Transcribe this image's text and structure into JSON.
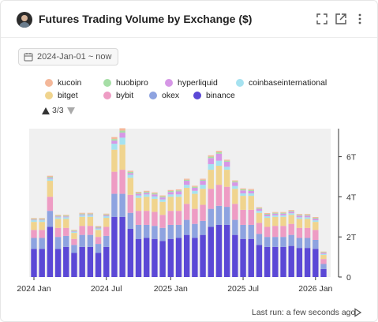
{
  "header": {
    "title": "Futures Trading Volume by Exchange ($)"
  },
  "date_filter": {
    "label": "2024-Jan-01 ~ now"
  },
  "legend": {
    "page": "3/3"
  },
  "footer": {
    "last_run": "Last run: a few seconds ago"
  },
  "chart_data": {
    "type": "bar",
    "stacked": true,
    "title": "Futures Trading Volume by Exchange ($)",
    "xlabel": "",
    "ylabel": "",
    "x_tick_labels": [
      "2024 Jan",
      "2024 Jul",
      "2025 Jan",
      "2025 Jul",
      "2026 Jan"
    ],
    "y_tick_labels": [
      "0",
      "2T",
      "4T",
      "6T"
    ],
    "ylim": [
      0,
      7.4
    ],
    "grid": false,
    "legend_position": "top",
    "categories": [
      "2024-01-01",
      "2024-01-22",
      "2024-02-12",
      "2024-03-04",
      "2024-03-25",
      "2024-04-15",
      "2024-05-06",
      "2024-05-27",
      "2024-06-17",
      "2024-07-08",
      "2024-07-29",
      "2024-08-19",
      "2024-09-09",
      "2024-09-30",
      "2024-10-21",
      "2024-11-11",
      "2024-12-02",
      "2024-12-23",
      "2025-01-13",
      "2025-02-03",
      "2025-02-24",
      "2025-03-17",
      "2025-04-07",
      "2025-04-28",
      "2025-05-19",
      "2025-06-09",
      "2025-06-30",
      "2025-07-21",
      "2025-08-11",
      "2025-09-01",
      "2025-09-22",
      "2025-10-13",
      "2025-11-03",
      "2025-11-24",
      "2025-12-15",
      "2026-01-05",
      "2026-01-26"
    ],
    "series": [
      {
        "name": "binance",
        "color": "#5b48d6",
        "values": [
          1.4,
          1.4,
          2.5,
          1.4,
          1.5,
          1.2,
          1.5,
          1.5,
          1.2,
          1.5,
          3.0,
          3.0,
          2.4,
          1.9,
          1.95,
          1.9,
          1.8,
          1.9,
          1.95,
          2.1,
          1.95,
          2.1,
          2.5,
          2.6,
          2.6,
          2.1,
          1.9,
          1.9,
          1.6,
          1.5,
          1.5,
          1.5,
          1.55,
          1.45,
          1.45,
          1.4,
          0.4
        ]
      },
      {
        "name": "okex",
        "color": "#8ea3e0",
        "values": [
          0.55,
          0.55,
          0.8,
          0.6,
          0.55,
          0.4,
          0.6,
          0.6,
          0.45,
          0.55,
          1.15,
          1.15,
          0.8,
          0.7,
          0.65,
          0.65,
          0.65,
          0.7,
          0.65,
          0.75,
          0.7,
          0.7,
          0.9,
          0.95,
          0.9,
          0.75,
          0.7,
          0.7,
          0.55,
          0.5,
          0.5,
          0.5,
          0.55,
          0.5,
          0.5,
          0.45,
          0.25
        ]
      },
      {
        "name": "bybit",
        "color": "#ee9cc4",
        "values": [
          0.4,
          0.4,
          0.7,
          0.45,
          0.4,
          0.3,
          0.45,
          0.45,
          0.35,
          0.45,
          1.1,
          1.2,
          0.9,
          0.7,
          0.7,
          0.7,
          0.65,
          0.7,
          0.7,
          0.8,
          0.75,
          0.8,
          1.0,
          1.05,
          1.0,
          0.8,
          0.75,
          0.75,
          0.55,
          0.5,
          0.55,
          0.55,
          0.55,
          0.5,
          0.5,
          0.5,
          0.25
        ]
      },
      {
        "name": "bitget",
        "color": "#f0d48e",
        "values": [
          0.4,
          0.4,
          0.8,
          0.45,
          0.45,
          0.3,
          0.45,
          0.45,
          0.35,
          0.45,
          1.1,
          1.25,
          0.85,
          0.65,
          0.7,
          0.65,
          0.65,
          0.7,
          0.7,
          0.8,
          0.75,
          0.8,
          0.95,
          0.95,
          0.85,
          0.75,
          0.7,
          0.7,
          0.5,
          0.45,
          0.45,
          0.45,
          0.45,
          0.45,
          0.45,
          0.4,
          0.2
        ]
      },
      {
        "name": "coinbaseinternational",
        "color": "#a6e2f0",
        "values": [
          0.08,
          0.08,
          0.1,
          0.08,
          0.08,
          0.06,
          0.08,
          0.08,
          0.07,
          0.08,
          0.3,
          0.35,
          0.15,
          0.12,
          0.12,
          0.12,
          0.12,
          0.12,
          0.12,
          0.15,
          0.15,
          0.2,
          0.28,
          0.25,
          0.15,
          0.14,
          0.12,
          0.12,
          0.1,
          0.08,
          0.08,
          0.08,
          0.08,
          0.08,
          0.08,
          0.08,
          0.05
        ]
      },
      {
        "name": "hyperliquid",
        "color": "#d697e6",
        "values": [
          0.03,
          0.03,
          0.05,
          0.04,
          0.04,
          0.03,
          0.04,
          0.04,
          0.04,
          0.05,
          0.15,
          0.25,
          0.08,
          0.08,
          0.08,
          0.1,
          0.1,
          0.12,
          0.15,
          0.2,
          0.15,
          0.2,
          0.3,
          0.35,
          0.25,
          0.18,
          0.15,
          0.12,
          0.1,
          0.08,
          0.08,
          0.08,
          0.08,
          0.08,
          0.08,
          0.08,
          0.06
        ]
      },
      {
        "name": "huobipro",
        "color": "#a6dea6",
        "values": [
          0.04,
          0.04,
          0.05,
          0.04,
          0.04,
          0.03,
          0.04,
          0.04,
          0.04,
          0.04,
          0.08,
          0.1,
          0.06,
          0.05,
          0.05,
          0.05,
          0.05,
          0.05,
          0.05,
          0.05,
          0.05,
          0.05,
          0.07,
          0.07,
          0.05,
          0.05,
          0.05,
          0.05,
          0.04,
          0.04,
          0.04,
          0.04,
          0.04,
          0.04,
          0.04,
          0.04,
          0.03
        ]
      },
      {
        "name": "kucoin",
        "color": "#f4b89a",
        "values": [
          0.04,
          0.04,
          0.05,
          0.04,
          0.04,
          0.03,
          0.04,
          0.04,
          0.04,
          0.04,
          0.1,
          0.12,
          0.06,
          0.05,
          0.05,
          0.05,
          0.05,
          0.05,
          0.05,
          0.05,
          0.05,
          0.05,
          0.07,
          0.07,
          0.05,
          0.05,
          0.05,
          0.05,
          0.04,
          0.04,
          0.04,
          0.04,
          0.04,
          0.04,
          0.04,
          0.04,
          0.03
        ]
      }
    ]
  }
}
